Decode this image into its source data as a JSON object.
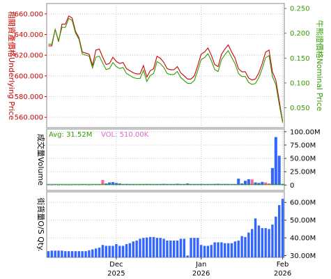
{
  "chart_data": [
    {
      "panel": "price",
      "type": "line",
      "ylabel_left": "相關資產價格Underlying Price",
      "ylabel_right": "牛熊證價格Nominal Price",
      "left_axis": {
        "ylim": [
          550,
          670
        ],
        "ticks": [
          "560.000",
          "580.000",
          "600.000",
          "620.000",
          "640.000",
          "660.000"
        ],
        "color": "#cc0000"
      },
      "right_axis": {
        "ylim": [
          0.01,
          0.26
        ],
        "ticks": [
          "0.050",
          "0.100",
          "0.150",
          "0.200",
          "0.250"
        ],
        "color": "#339900"
      },
      "series": [
        {
          "axis": "left",
          "color": "#cc0000",
          "values": [
            629,
            629,
            645,
            633,
            650,
            650,
            658,
            656,
            643,
            637,
            623,
            622,
            621,
            610,
            625,
            626,
            618,
            611,
            612,
            618,
            614,
            612,
            613,
            607,
            605,
            603,
            602,
            602,
            610,
            599,
            605,
            607,
            619,
            617,
            613,
            607,
            606,
            606,
            609,
            603,
            600,
            597,
            597,
            600,
            610,
            621,
            623,
            627,
            620,
            611,
            609,
            621,
            626,
            630,
            623,
            617,
            607,
            604,
            604,
            598,
            596,
            597,
            603,
            612,
            623,
            625,
            604,
            596,
            576,
            556
          ]
        },
        {
          "axis": "right",
          "color": "#339900",
          "values": [
            0.178,
            0.178,
            0.208,
            0.185,
            0.212,
            0.212,
            0.23,
            0.226,
            0.2,
            0.188,
            0.158,
            0.156,
            0.154,
            0.13,
            0.152,
            0.154,
            0.14,
            0.127,
            0.129,
            0.141,
            0.133,
            0.129,
            0.131,
            0.119,
            0.115,
            0.111,
            0.109,
            0.109,
            0.125,
            0.103,
            0.115,
            0.119,
            0.143,
            0.139,
            0.131,
            0.119,
            0.117,
            0.117,
            0.123,
            0.111,
            0.105,
            0.099,
            0.099,
            0.105,
            0.125,
            0.147,
            0.151,
            0.159,
            0.145,
            0.127,
            0.123,
            0.147,
            0.157,
            0.165,
            0.151,
            0.139,
            0.119,
            0.113,
            0.113,
            0.101,
            0.097,
            0.099,
            0.111,
            0.129,
            0.151,
            0.155,
            0.113,
            0.097,
            0.057,
            0.02
          ]
        }
      ]
    },
    {
      "panel": "volume",
      "type": "bar",
      "ylabel_left": "成交量Volume",
      "avg_label": "Avg: 31.52M",
      "vol_label": "VOL: 510.00K",
      "avg_color": "#339900",
      "vol_color": "#dd66cc",
      "ylim": [
        -10,
        105
      ],
      "ticks": [
        "0",
        "25.00M",
        "50.00M",
        "75.00M",
        "100.00M"
      ],
      "up_color": "#3366ff",
      "down_color": "#ff6699",
      "avg_line_value": 1.5,
      "values": [
        0.6,
        0.4,
        0.8,
        0.5,
        0.6,
        0.7,
        0.5,
        0.6,
        0.8,
        0.7,
        1.0,
        0.9,
        0.6,
        0.8,
        0.9,
        1.0,
        9.5,
        3.0,
        5.0,
        5.5,
        4.0,
        3.0,
        1.5,
        2.0,
        1.8,
        1.0,
        0.8,
        1.2,
        1.6,
        2.0,
        1.4,
        1.0,
        1.2,
        1.5,
        2.2,
        1.6,
        1.8,
        1.2,
        2.5,
        1.4,
        1.6,
        3.0,
        1.2,
        1.4,
        1.8,
        2.0,
        1.6,
        1.4,
        1.5,
        2.0,
        2.4,
        1.8,
        2.0,
        1.8,
        1.6,
        1.5,
        12.0,
        3.0,
        8.0,
        11.0,
        10.5,
        5.0,
        4.0,
        6.0,
        5.0,
        3.0,
        32.0,
        90.0,
        55.0,
        2.0
      ],
      "down_indices": [
        16,
        60,
        64,
        65
      ]
    },
    {
      "panel": "outstanding",
      "type": "bar",
      "ylabel_left": "街貨量O/S Qty.",
      "ylim": [
        29,
        66
      ],
      "ticks": [
        "30.00M",
        "40.00M",
        "50.00M",
        "60.00M"
      ],
      "color": "#3366ff",
      "values": [
        32.5,
        32.8,
        32.8,
        32.8,
        32.8,
        32.5,
        32.5,
        32.5,
        32.5,
        32.5,
        32.5,
        32.5,
        33.0,
        33.5,
        34.0,
        34.5,
        36.0,
        35.5,
        35.5,
        35.5,
        36.5,
        35.5,
        35.5,
        36.5,
        37.0,
        38.0,
        38.5,
        39.5,
        40.0,
        40.2,
        40.5,
        40.5,
        40.0,
        40.0,
        39.5,
        38.5,
        38.5,
        38.5,
        38.5,
        39.5,
        39.5,
        30.0,
        40.0,
        40.0,
        40.0,
        36.0,
        35.5,
        35.5,
        36.0,
        37.5,
        37.5,
        37.5,
        37.0,
        37.0,
        37.0,
        38.0,
        38.5,
        41.0,
        40.5,
        43.0,
        45.0,
        51.0,
        47.0,
        45.5,
        45.5,
        45.0,
        47.5,
        52.0,
        58.5,
        62.0
      ],
      "x_labels": [
        {
          "line1": "Dec",
          "line2": "2025",
          "index": 20
        },
        {
          "line1": "Jan",
          "line2": "2026",
          "index": 45
        },
        {
          "line1": "Feb",
          "line2": "2026",
          "index": 69
        }
      ]
    }
  ]
}
